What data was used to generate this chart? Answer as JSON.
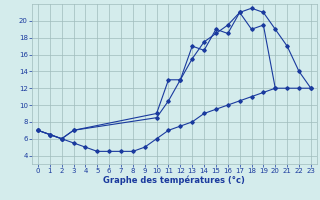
{
  "line1_x": [
    0,
    1,
    2,
    3,
    10,
    11,
    12,
    13,
    14,
    15,
    16,
    17,
    18,
    19,
    20,
    21,
    22,
    23
  ],
  "line1_y": [
    7.0,
    6.5,
    6.0,
    7.0,
    9.0,
    13.0,
    13.0,
    17.0,
    16.5,
    19.0,
    18.5,
    21.0,
    21.5,
    21.0,
    19.0,
    17.0,
    14.0,
    12.0
  ],
  "line2_x": [
    0,
    1,
    2,
    3,
    10,
    11,
    12,
    13,
    14,
    15,
    16,
    17,
    18,
    19,
    20
  ],
  "line2_y": [
    7.0,
    6.5,
    6.0,
    7.0,
    8.5,
    10.5,
    13.0,
    15.5,
    17.5,
    18.5,
    19.5,
    21.0,
    19.0,
    19.5,
    12.0
  ],
  "line3_x": [
    0,
    1,
    2,
    3,
    4,
    5,
    6,
    7,
    8,
    9,
    10,
    11,
    12,
    13,
    14,
    15,
    16,
    17,
    18,
    19,
    20,
    21,
    22,
    23
  ],
  "line3_y": [
    7.0,
    6.5,
    6.0,
    5.5,
    5.0,
    4.5,
    4.5,
    4.5,
    4.5,
    5.0,
    6.0,
    7.0,
    7.5,
    8.0,
    9.0,
    9.5,
    10.0,
    10.5,
    11.0,
    11.5,
    12.0,
    12.0,
    12.0,
    12.0
  ],
  "line_color": "#1a3a9e",
  "bg_color": "#d4ecec",
  "grid_color": "#a0bcbc",
  "xlabel": "Graphe des températures (°c)",
  "xlim": [
    -0.5,
    23.5
  ],
  "ylim": [
    3.0,
    22.0
  ],
  "yticks": [
    4,
    6,
    8,
    10,
    12,
    14,
    16,
    18,
    20
  ],
  "xticks": [
    0,
    1,
    2,
    3,
    4,
    5,
    6,
    7,
    8,
    9,
    10,
    11,
    12,
    13,
    14,
    15,
    16,
    17,
    18,
    19,
    20,
    21,
    22,
    23
  ]
}
